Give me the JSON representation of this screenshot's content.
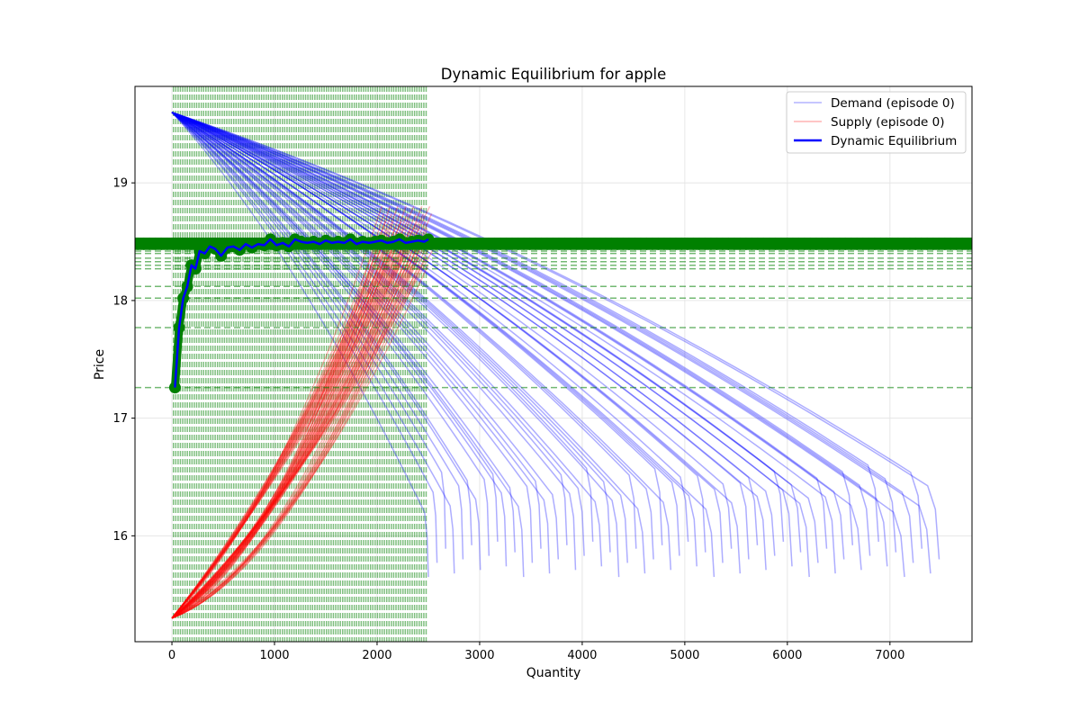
{
  "chart_data": {
    "type": "line",
    "title": "Dynamic Equilibrium for apple",
    "xlabel": "Quantity",
    "ylabel": "Price",
    "xlim": [
      -360,
      7800
    ],
    "ylim": [
      15.1,
      19.82
    ],
    "xticks": [
      0,
      1000,
      2000,
      3000,
      4000,
      5000,
      6000,
      7000
    ],
    "yticks": [
      16,
      17,
      18,
      19
    ],
    "grid": true,
    "legend_position": "top-right",
    "legend": [
      "Demand (episode 0)",
      "Supply (episode 0)",
      "Dynamic Equilibrium"
    ],
    "colors": {
      "demand": "#0000ff",
      "supply": "#ff0000",
      "equilibrium_line": "#0000ff",
      "equilibrium_markers": "#008000",
      "reference_lines": "#008000",
      "grid": "#e6e6e6"
    },
    "demand_curves": {
      "count": 60,
      "start": [
        0,
        19.6
      ],
      "end_quantity_range": [
        2500,
        7480
      ],
      "end_price_range": [
        15.65,
        15.95
      ]
    },
    "supply_curves": {
      "count": 60,
      "start": [
        0,
        15.3
      ],
      "end_quantity_range": [
        2030,
        2540
      ],
      "end_price_range": [
        18.3,
        18.8
      ]
    },
    "equilibrium": {
      "quantity": [
        30,
        70,
        110,
        150,
        190,
        230,
        270,
        320,
        370,
        420,
        480,
        540,
        600,
        660,
        720,
        780,
        840,
        900,
        960,
        1020,
        1080,
        1140,
        1200,
        1260,
        1320,
        1380,
        1440,
        1500,
        1560,
        1620,
        1680,
        1740,
        1800,
        1860,
        1920,
        1980,
        2040,
        2100,
        2160,
        2220,
        2280,
        2340,
        2400,
        2460,
        2500
      ],
      "price": [
        17.26,
        17.77,
        18.02,
        18.12,
        18.3,
        18.27,
        18.42,
        18.4,
        18.46,
        18.44,
        18.38,
        18.45,
        18.46,
        18.43,
        18.48,
        18.45,
        18.48,
        18.47,
        18.52,
        18.47,
        18.49,
        18.46,
        18.52,
        18.5,
        18.49,
        18.5,
        18.48,
        18.51,
        18.49,
        18.5,
        18.49,
        18.52,
        18.48,
        18.5,
        18.49,
        18.5,
        18.51,
        18.49,
        18.5,
        18.52,
        18.49,
        18.5,
        18.51,
        18.5,
        18.52
      ]
    }
  }
}
